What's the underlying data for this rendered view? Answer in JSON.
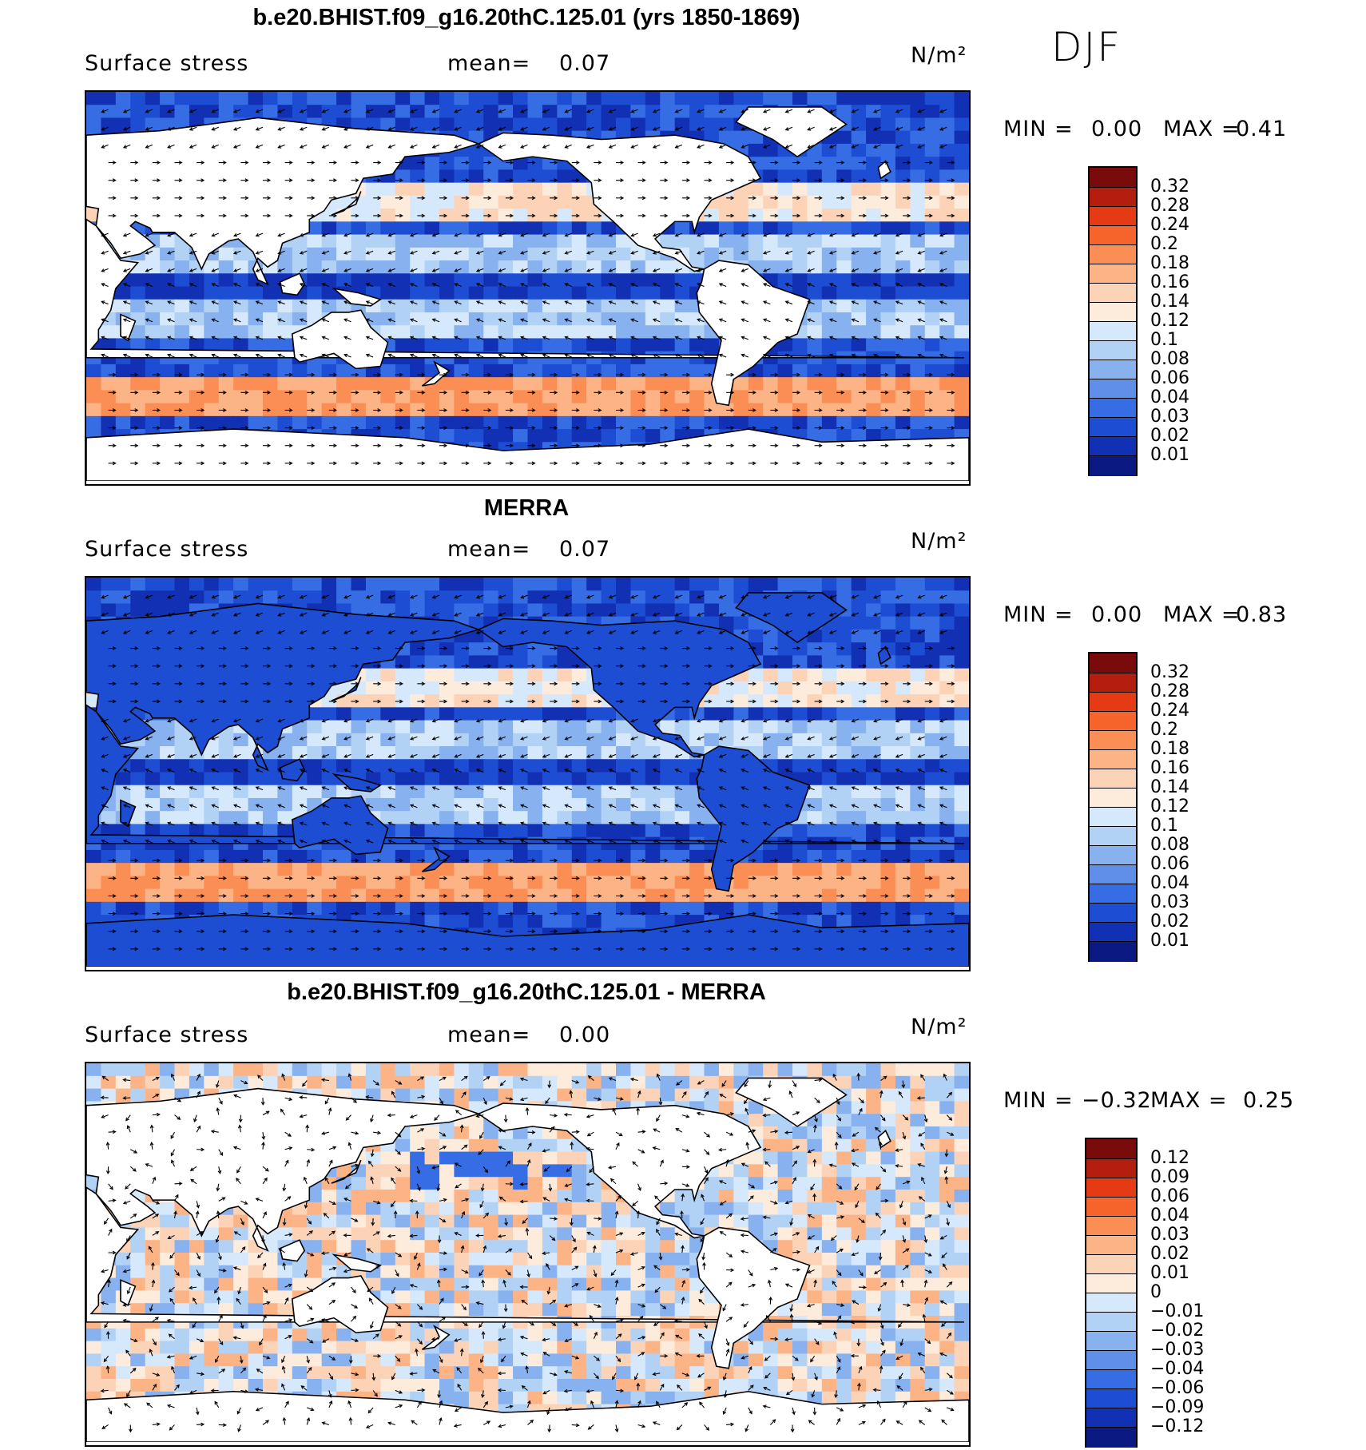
{
  "figure": {
    "season": "DJF",
    "panels": [
      {
        "title": "b.e20.BHIST.f09_g16.20thC.125.01 (yrs 1850-1869)",
        "field": "Surface stress",
        "mean_label": "mean=",
        "mean_value": "0.07",
        "units": "N/m²",
        "min_label": "MIN =",
        "min_value": "0.00",
        "max_label": "MAX =",
        "max_value": "0.41",
        "colorbar": {
          "levels": [
            "0.32",
            "0.28",
            "0.24",
            "0.2",
            "0.18",
            "0.16",
            "0.14",
            "0.12",
            "0.1",
            "0.08",
            "0.06",
            "0.04",
            "0.03",
            "0.02",
            "0.01"
          ],
          "colors": [
            "#7a0b0b",
            "#b51d0f",
            "#e53b14",
            "#f6642c",
            "#fa8e55",
            "#fcb487",
            "#fdd3b7",
            "#fdebdc",
            "#d6e8fb",
            "#b2d2f5",
            "#87b1ef",
            "#5f8fe9",
            "#376de4",
            "#1d4dd3",
            "#1230b3",
            "#0a1a82"
          ]
        },
        "map_style": "positive"
      },
      {
        "title": "MERRA",
        "field": "Surface stress",
        "mean_label": "mean=",
        "mean_value": "0.07",
        "units": "N/m²",
        "min_label": "MIN =",
        "min_value": "0.00",
        "max_label": "MAX =",
        "max_value": "0.83",
        "colorbar": {
          "levels": [
            "0.32",
            "0.28",
            "0.24",
            "0.2",
            "0.18",
            "0.16",
            "0.14",
            "0.12",
            "0.1",
            "0.08",
            "0.06",
            "0.04",
            "0.03",
            "0.02",
            "0.01"
          ],
          "colors": [
            "#7a0b0b",
            "#b51d0f",
            "#e53b14",
            "#f6642c",
            "#fa8e55",
            "#fcb487",
            "#fdd3b7",
            "#fdebdc",
            "#d6e8fb",
            "#b2d2f5",
            "#87b1ef",
            "#5f8fe9",
            "#376de4",
            "#1d4dd3",
            "#1230b3",
            "#0a1a82"
          ]
        },
        "map_style": "positive"
      },
      {
        "title": "b.e20.BHIST.f09_g16.20thC.125.01 - MERRA",
        "field": "Surface stress",
        "mean_label": "mean=",
        "mean_value": "0.00",
        "units": "N/m²",
        "min_label": "MIN =",
        "min_value": "−0.32",
        "max_label": "MAX =",
        "max_value": "0.25",
        "colorbar": {
          "levels": [
            "0.12",
            "0.09",
            "0.06",
            "0.04",
            "0.03",
            "0.02",
            "0.01",
            "0",
            "−0.01",
            "−0.02",
            "−0.03",
            "−0.04",
            "−0.06",
            "−0.09",
            "−0.12"
          ],
          "colors": [
            "#7a0b0b",
            "#b51d0f",
            "#e53b14",
            "#f6642c",
            "#fa8e55",
            "#fcb487",
            "#fdd3b7",
            "#fdebdc",
            "#d6e8fb",
            "#b2d2f5",
            "#87b1ef",
            "#5f8fe9",
            "#376de4",
            "#1d4dd3",
            "#1230b3",
            "#0a1a82"
          ]
        },
        "map_style": "difference"
      }
    ]
  }
}
